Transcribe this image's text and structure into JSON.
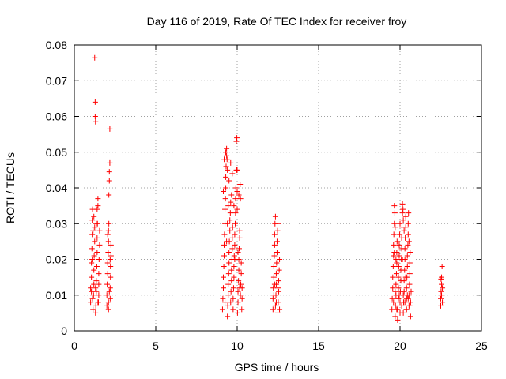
{
  "chart_data": {
    "type": "scatter",
    "title": "Day 116 of 2019, Rate Of TEC Index for receiver froy",
    "xlabel": "GPS time / hours",
    "ylabel": "ROTI / TECUs",
    "xlim": [
      0,
      25
    ],
    "ylim": [
      0,
      0.08
    ],
    "xticks": [
      0,
      5,
      10,
      15,
      20,
      25
    ],
    "xtick_labels": [
      "0",
      "5",
      "10",
      "15",
      "20",
      "25"
    ],
    "yticks": [
      0,
      0.01,
      0.02,
      0.03,
      0.04,
      0.05,
      0.06,
      0.07,
      0.08
    ],
    "ytick_labels": [
      "0",
      "0.01",
      "0.02",
      "0.03",
      "0.04",
      "0.05",
      "0.06",
      "0.07",
      "0.08"
    ],
    "grid": true,
    "marker": "+",
    "marker_color": "#ff0000",
    "series": [
      {
        "name": "ROTI",
        "points": [
          [
            1.0,
            0.008
          ],
          [
            1.0,
            0.012
          ],
          [
            1.05,
            0.015
          ],
          [
            1.05,
            0.019
          ],
          [
            1.08,
            0.023
          ],
          [
            1.1,
            0.027
          ],
          [
            1.1,
            0.031
          ],
          [
            1.12,
            0.034
          ],
          [
            1.12,
            0.009
          ],
          [
            1.15,
            0.006
          ],
          [
            1.18,
            0.01
          ],
          [
            1.2,
            0.013
          ],
          [
            1.2,
            0.017
          ],
          [
            1.22,
            0.021
          ],
          [
            1.25,
            0.025
          ],
          [
            1.25,
            0.029
          ],
          [
            1.25,
            0.0764
          ],
          [
            1.28,
            0.064
          ],
          [
            1.28,
            0.06
          ],
          [
            1.3,
            0.0585
          ],
          [
            1.3,
            0.005
          ],
          [
            1.32,
            0.007
          ],
          [
            1.35,
            0.011
          ],
          [
            1.35,
            0.014
          ],
          [
            1.38,
            0.018
          ],
          [
            1.4,
            0.022
          ],
          [
            1.4,
            0.026
          ],
          [
            1.42,
            0.03
          ],
          [
            1.45,
            0.035
          ],
          [
            1.45,
            0.037
          ],
          [
            1.48,
            0.008
          ],
          [
            1.5,
            0.01
          ],
          [
            1.5,
            0.016
          ],
          [
            1.52,
            0.02
          ],
          [
            1.55,
            0.024
          ],
          [
            1.55,
            0.028
          ],
          [
            1.35,
            0.03
          ],
          [
            1.4,
            0.034
          ],
          [
            1.2,
            0.032
          ],
          [
            1.15,
            0.028
          ],
          [
            1.1,
            0.02
          ],
          [
            1.3,
            0.012
          ],
          [
            1.45,
            0.008
          ],
          [
            1.5,
            0.013
          ],
          [
            1.05,
            0.011
          ],
          [
            2.0,
            0.007
          ],
          [
            2.0,
            0.01
          ],
          [
            2.02,
            0.013
          ],
          [
            2.05,
            0.016
          ],
          [
            2.05,
            0.019
          ],
          [
            2.08,
            0.022
          ],
          [
            2.1,
            0.025
          ],
          [
            2.1,
            0.028
          ],
          [
            2.12,
            0.03
          ],
          [
            2.12,
            0.038
          ],
          [
            2.15,
            0.042
          ],
          [
            2.15,
            0.0445
          ],
          [
            2.18,
            0.047
          ],
          [
            2.18,
            0.0565
          ],
          [
            2.2,
            0.009
          ],
          [
            2.2,
            0.012
          ],
          [
            2.22,
            0.015
          ],
          [
            2.22,
            0.018
          ],
          [
            2.25,
            0.021
          ],
          [
            2.25,
            0.024
          ],
          [
            2.1,
            0.006
          ],
          [
            2.15,
            0.011
          ],
          [
            2.2,
            0.02
          ],
          [
            2.05,
            0.027
          ],
          [
            2.1,
            0.008
          ],
          [
            9.1,
            0.006
          ],
          [
            9.12,
            0.009
          ],
          [
            9.15,
            0.012
          ],
          [
            9.15,
            0.015
          ],
          [
            9.18,
            0.018
          ],
          [
            9.2,
            0.021
          ],
          [
            9.2,
            0.024
          ],
          [
            9.22,
            0.027
          ],
          [
            9.25,
            0.03
          ],
          [
            9.25,
            0.034
          ],
          [
            9.28,
            0.037
          ],
          [
            9.3,
            0.04
          ],
          [
            9.3,
            0.043
          ],
          [
            9.32,
            0.046
          ],
          [
            9.35,
            0.049
          ],
          [
            9.35,
            0.051
          ],
          [
            9.38,
            0.048
          ],
          [
            9.4,
            0.045
          ],
          [
            9.4,
            0.004
          ],
          [
            9.42,
            0.007
          ],
          [
            9.45,
            0.01
          ],
          [
            9.45,
            0.013
          ],
          [
            9.48,
            0.016
          ],
          [
            9.5,
            0.019
          ],
          [
            9.5,
            0.022
          ],
          [
            9.52,
            0.025
          ],
          [
            9.55,
            0.028
          ],
          [
            9.55,
            0.031
          ],
          [
            9.58,
            0.033
          ],
          [
            9.6,
            0.036
          ],
          [
            9.6,
            0.008
          ],
          [
            9.62,
            0.011
          ],
          [
            9.65,
            0.014
          ],
          [
            9.65,
            0.017
          ],
          [
            9.68,
            0.02
          ],
          [
            9.7,
            0.023
          ],
          [
            9.7,
            0.026
          ],
          [
            9.72,
            0.029
          ],
          [
            9.75,
            0.006
          ],
          [
            9.75,
            0.009
          ],
          [
            9.78,
            0.012
          ],
          [
            9.8,
            0.015
          ],
          [
            9.8,
            0.018
          ],
          [
            9.82,
            0.021
          ],
          [
            9.85,
            0.024
          ],
          [
            9.85,
            0.027
          ],
          [
            9.88,
            0.03
          ],
          [
            9.9,
            0.033
          ],
          [
            9.9,
            0.037
          ],
          [
            9.92,
            0.04
          ],
          [
            9.95,
            0.045
          ],
          [
            9.95,
            0.053
          ],
          [
            9.98,
            0.054
          ],
          [
            10.0,
            0.045
          ],
          [
            10.0,
            0.039
          ],
          [
            10.02,
            0.005
          ],
          [
            10.05,
            0.008
          ],
          [
            10.05,
            0.011
          ],
          [
            10.08,
            0.014
          ],
          [
            10.1,
            0.017
          ],
          [
            10.1,
            0.02
          ],
          [
            10.12,
            0.023
          ],
          [
            10.15,
            0.026
          ],
          [
            10.15,
            0.028
          ],
          [
            10.18,
            0.041
          ],
          [
            10.2,
            0.037
          ],
          [
            10.2,
            0.01
          ],
          [
            10.22,
            0.013
          ],
          [
            10.25,
            0.016
          ],
          [
            10.25,
            0.019
          ],
          [
            10.28,
            0.006
          ],
          [
            10.3,
            0.009
          ],
          [
            10.3,
            0.012
          ],
          [
            9.2,
            0.048
          ],
          [
            9.3,
            0.05
          ],
          [
            9.4,
            0.03
          ],
          [
            9.5,
            0.042
          ],
          [
            9.6,
            0.047
          ],
          [
            9.7,
            0.044
          ],
          [
            9.8,
            0.035
          ],
          [
            10.0,
            0.034
          ],
          [
            10.1,
            0.038
          ],
          [
            9.15,
            0.039
          ],
          [
            9.35,
            0.025
          ],
          [
            9.45,
            0.035
          ],
          [
            9.65,
            0.038
          ],
          [
            9.85,
            0.02
          ],
          [
            10.05,
            0.022
          ],
          [
            10.15,
            0.012
          ],
          [
            9.25,
            0.008
          ],
          [
            12.2,
            0.006
          ],
          [
            12.2,
            0.009
          ],
          [
            12.22,
            0.012
          ],
          [
            12.25,
            0.015
          ],
          [
            12.25,
            0.018
          ],
          [
            12.28,
            0.021
          ],
          [
            12.3,
            0.024
          ],
          [
            12.3,
            0.027
          ],
          [
            12.32,
            0.03
          ],
          [
            12.35,
            0.032
          ],
          [
            12.35,
            0.007
          ],
          [
            12.38,
            0.01
          ],
          [
            12.4,
            0.013
          ],
          [
            12.4,
            0.016
          ],
          [
            12.42,
            0.019
          ],
          [
            12.45,
            0.022
          ],
          [
            12.45,
            0.025
          ],
          [
            12.48,
            0.028
          ],
          [
            12.5,
            0.03
          ],
          [
            12.5,
            0.005
          ],
          [
            12.52,
            0.008
          ],
          [
            12.55,
            0.011
          ],
          [
            12.55,
            0.014
          ],
          [
            12.58,
            0.017
          ],
          [
            12.6,
            0.02
          ],
          [
            12.6,
            0.006
          ],
          [
            12.3,
            0.013
          ],
          [
            12.4,
            0.008
          ],
          [
            12.5,
            0.012
          ],
          [
            12.25,
            0.01
          ],
          [
            19.5,
            0.006
          ],
          [
            19.52,
            0.009
          ],
          [
            19.55,
            0.012
          ],
          [
            19.55,
            0.015
          ],
          [
            19.58,
            0.018
          ],
          [
            19.6,
            0.021
          ],
          [
            19.6,
            0.024
          ],
          [
            19.62,
            0.027
          ],
          [
            19.65,
            0.03
          ],
          [
            19.65,
            0.035
          ],
          [
            19.68,
            0.033
          ],
          [
            19.7,
            0.029
          ],
          [
            19.7,
            0.004
          ],
          [
            19.72,
            0.007
          ],
          [
            19.75,
            0.01
          ],
          [
            19.75,
            0.013
          ],
          [
            19.78,
            0.016
          ],
          [
            19.8,
            0.019
          ],
          [
            19.8,
            0.022
          ],
          [
            19.82,
            0.025
          ],
          [
            19.85,
            0.003
          ],
          [
            19.85,
            0.006
          ],
          [
            19.88,
            0.009
          ],
          [
            19.9,
            0.012
          ],
          [
            19.9,
            0.015
          ],
          [
            19.92,
            0.018
          ],
          [
            19.95,
            0.021
          ],
          [
            19.95,
            0.024
          ],
          [
            19.98,
            0.027
          ],
          [
            20.0,
            0.03
          ],
          [
            20.0,
            0.008
          ],
          [
            20.02,
            0.011
          ],
          [
            20.05,
            0.014
          ],
          [
            20.05,
            0.017
          ],
          [
            20.08,
            0.02
          ],
          [
            20.1,
            0.023
          ],
          [
            20.1,
            0.026
          ],
          [
            20.12,
            0.029
          ],
          [
            20.15,
            0.033
          ],
          [
            20.15,
            0.0355
          ],
          [
            20.18,
            0.034
          ],
          [
            20.2,
            0.031
          ],
          [
            20.2,
            0.005
          ],
          [
            20.22,
            0.008
          ],
          [
            20.25,
            0.011
          ],
          [
            20.25,
            0.014
          ],
          [
            20.28,
            0.017
          ],
          [
            20.3,
            0.02
          ],
          [
            20.3,
            0.023
          ],
          [
            20.32,
            0.026
          ],
          [
            20.35,
            0.029
          ],
          [
            20.35,
            0.032
          ],
          [
            20.38,
            0.006
          ],
          [
            20.4,
            0.009
          ],
          [
            20.4,
            0.012
          ],
          [
            20.42,
            0.015
          ],
          [
            20.45,
            0.018
          ],
          [
            20.45,
            0.021
          ],
          [
            20.48,
            0.024
          ],
          [
            20.5,
            0.027
          ],
          [
            20.5,
            0.03
          ],
          [
            20.52,
            0.033
          ],
          [
            20.55,
            0.007
          ],
          [
            20.55,
            0.01
          ],
          [
            20.58,
            0.013
          ],
          [
            20.6,
            0.016
          ],
          [
            20.6,
            0.019
          ],
          [
            20.62,
            0.022
          ],
          [
            20.65,
            0.004
          ],
          [
            20.65,
            0.008
          ],
          [
            20.68,
            0.011
          ],
          [
            19.6,
            0.008
          ],
          [
            19.7,
            0.011
          ],
          [
            19.8,
            0.006
          ],
          [
            19.9,
            0.009
          ],
          [
            20.0,
            0.005
          ],
          [
            20.1,
            0.007
          ],
          [
            20.2,
            0.01
          ],
          [
            20.3,
            0.008
          ],
          [
            20.4,
            0.006
          ],
          [
            20.5,
            0.009
          ],
          [
            20.6,
            0.007
          ],
          [
            19.75,
            0.02
          ],
          [
            19.95,
            0.01
          ],
          [
            20.15,
            0.02
          ],
          [
            20.35,
            0.015
          ],
          [
            20.55,
            0.025
          ],
          [
            19.65,
            0.022
          ],
          [
            20.45,
            0.01
          ],
          [
            20.25,
            0.028
          ],
          [
            22.5,
            0.007
          ],
          [
            22.5,
            0.009
          ],
          [
            22.52,
            0.011
          ],
          [
            22.55,
            0.013
          ],
          [
            22.55,
            0.015
          ],
          [
            22.58,
            0.018
          ],
          [
            22.6,
            0.012
          ],
          [
            22.6,
            0.008
          ],
          [
            22.55,
            0.01
          ],
          [
            22.52,
            0.0145
          ]
        ]
      }
    ]
  }
}
